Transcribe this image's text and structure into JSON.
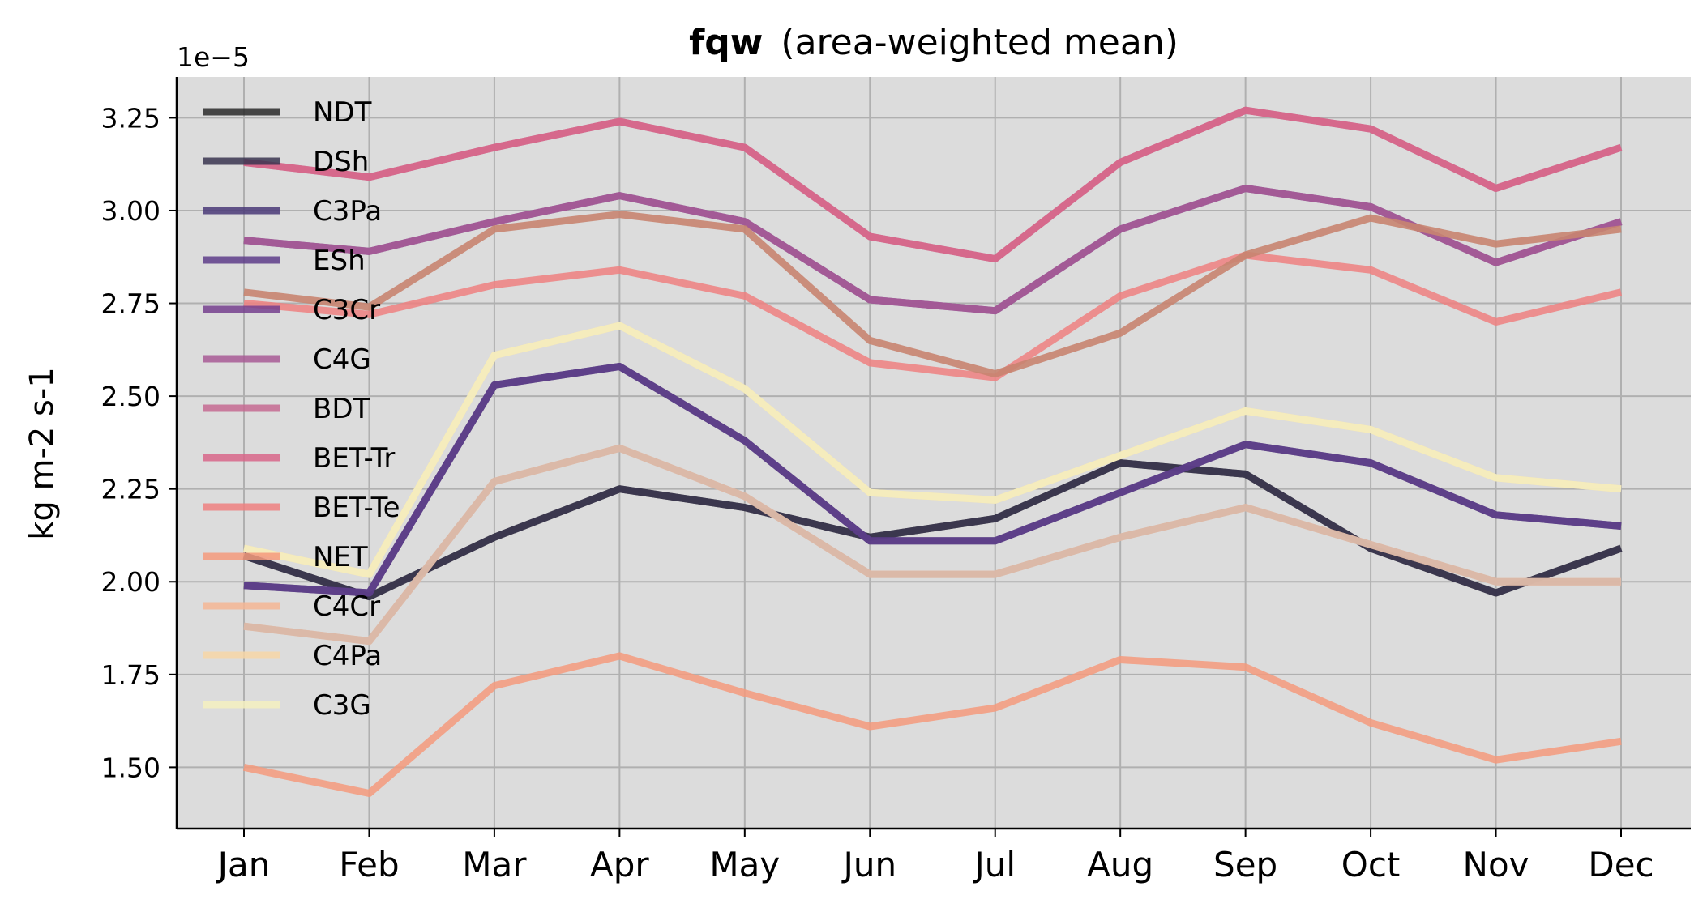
{
  "chart_data": {
    "type": "line",
    "title_bold": "fqw",
    "title_rest": "(area-weighted mean)",
    "xlabel": "",
    "ylabel": "kg m-2 s-1",
    "y_offset_label": "1e−5",
    "ylim": [
      1.335,
      3.36
    ],
    "yticks": [
      1.5,
      1.75,
      2.0,
      2.25,
      2.5,
      2.75,
      3.0,
      3.25
    ],
    "ytick_labels": [
      "1.50",
      "1.75",
      "2.00",
      "2.25",
      "2.50",
      "2.75",
      "3.00",
      "3.25"
    ],
    "categories": [
      "Jan",
      "Feb",
      "Mar",
      "Apr",
      "May",
      "Jun",
      "Jul",
      "Aug",
      "Sep",
      "Oct",
      "Nov",
      "Dec"
    ],
    "grid": true,
    "legend_position": "upper-left",
    "background": "#dcdcdc",
    "series": [
      {
        "name": "NDT",
        "color": "#2a2a2a",
        "values": [
          2.07,
          1.96,
          2.12,
          2.25,
          2.2,
          2.12,
          2.17,
          2.32,
          2.29,
          2.09,
          1.97,
          2.09
        ]
      },
      {
        "name": "DSh",
        "color": "#3a3550",
        "values": [
          2.07,
          1.96,
          2.12,
          2.25,
          2.2,
          2.12,
          2.17,
          2.32,
          2.29,
          2.09,
          1.97,
          2.09
        ]
      },
      {
        "name": "C3Pa",
        "color": "#4a3a78",
        "values": [
          1.99,
          1.97,
          2.53,
          2.58,
          2.38,
          2.11,
          2.11,
          2.24,
          2.37,
          2.32,
          2.18,
          2.15
        ]
      },
      {
        "name": "ESh",
        "color": "#5e3d8a",
        "values": [
          1.99,
          1.97,
          2.53,
          2.58,
          2.38,
          2.11,
          2.11,
          2.24,
          2.37,
          2.32,
          2.18,
          2.15
        ]
      },
      {
        "name": "C3Cr",
        "color": "#76408e",
        "values": [
          2.92,
          2.89,
          2.97,
          3.04,
          2.97,
          2.76,
          2.73,
          2.95,
          3.06,
          3.01,
          2.86,
          2.97
        ]
      },
      {
        "name": "C4G",
        "color": "#a85b95",
        "values": [
          2.92,
          2.89,
          2.97,
          3.04,
          2.97,
          2.76,
          2.73,
          2.95,
          3.06,
          3.01,
          2.86,
          2.97
        ]
      },
      {
        "name": "BDT",
        "color": "#c66a92",
        "values": [
          3.13,
          3.09,
          3.17,
          3.24,
          3.17,
          2.93,
          2.87,
          3.13,
          3.27,
          3.22,
          3.06,
          3.17
        ]
      },
      {
        "name": "BET-Tr",
        "color": "#d8668a",
        "values": [
          3.13,
          3.09,
          3.17,
          3.24,
          3.17,
          2.93,
          2.87,
          3.13,
          3.27,
          3.22,
          3.06,
          3.17
        ]
      },
      {
        "name": "BET-Te",
        "color": "#ee8080",
        "values": [
          2.75,
          2.72,
          2.8,
          2.84,
          2.77,
          2.59,
          2.55,
          2.77,
          2.88,
          2.84,
          2.7,
          2.78
        ]
      },
      {
        "name": "NET",
        "color": "#f49a7c",
        "values": [
          1.5,
          1.43,
          1.72,
          1.8,
          1.7,
          1.61,
          1.66,
          1.79,
          1.77,
          1.62,
          1.52,
          1.57
        ]
      },
      {
        "name": "C4Cr",
        "color": "#f5b694",
        "values": [
          1.88,
          1.84,
          2.27,
          2.36,
          2.23,
          2.02,
          2.02,
          2.12,
          2.2,
          2.1,
          2.0,
          2.0
        ]
      },
      {
        "name": "C4Pa",
        "color": "#f7d6a6",
        "values": [
          2.09,
          2.02,
          2.61,
          2.69,
          2.52,
          2.24,
          2.22,
          2.34,
          2.46,
          2.41,
          2.28,
          2.25
        ]
      },
      {
        "name": "C3G",
        "color": "#f4f0c0",
        "values": [
          2.09,
          2.02,
          2.61,
          2.69,
          2.52,
          2.24,
          2.22,
          2.34,
          2.46,
          2.41,
          2.28,
          2.25
        ]
      }
    ],
    "extra_lines": [
      {
        "color": "#c88470",
        "values": [
          2.78,
          2.74,
          2.95,
          2.99,
          2.95,
          2.65,
          2.56,
          2.67,
          2.88,
          2.98,
          2.91,
          2.95
        ]
      },
      {
        "color": "#d8b8a8",
        "values": [
          1.88,
          1.84,
          2.27,
          2.36,
          2.23,
          2.02,
          2.02,
          2.12,
          2.2,
          2.1,
          2.0,
          2.0
        ]
      }
    ]
  }
}
